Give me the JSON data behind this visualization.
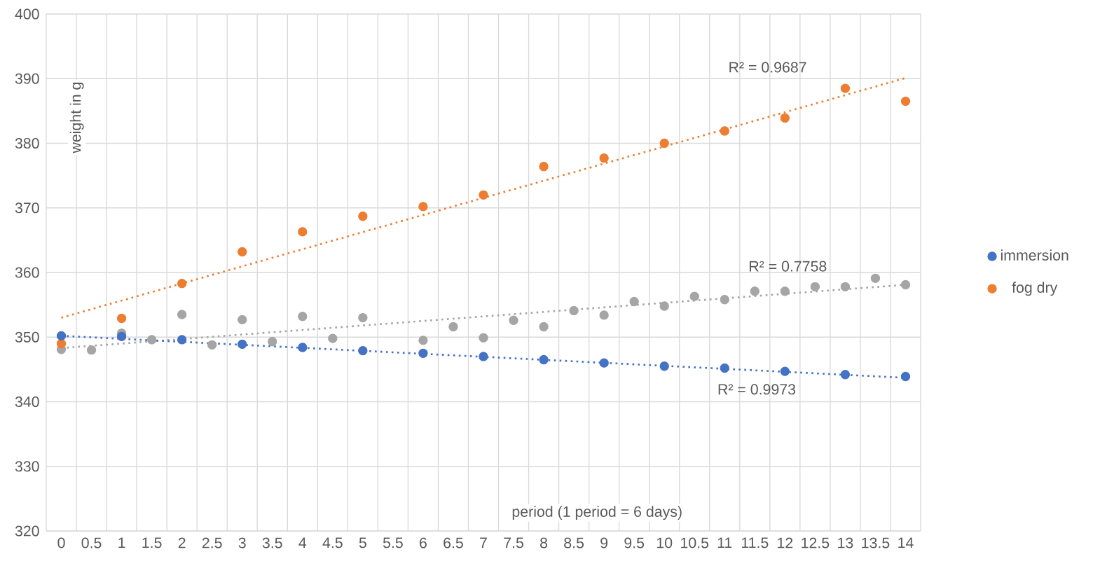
{
  "chart_data": {
    "type": "scatter",
    "xlabel": "period (1 period = 6 days)",
    "ylabel": "weight in g",
    "xlim": [
      -0.25,
      14.25
    ],
    "ylim": [
      320,
      400
    ],
    "xticks": [
      0,
      0.5,
      1,
      1.5,
      2,
      2.5,
      3,
      3.5,
      4,
      4.5,
      5,
      5.5,
      6,
      6.5,
      7,
      7.5,
      8,
      8.5,
      9,
      9.5,
      10,
      10.5,
      11,
      11.5,
      12,
      12.5,
      13,
      13.5,
      14
    ],
    "yticks": [
      320,
      330,
      340,
      350,
      360,
      370,
      380,
      390,
      400
    ],
    "grid": true,
    "legend": "right",
    "marker": "circle",
    "series": [
      {
        "name": "immersion",
        "color": "#4472c4",
        "x": [
          0,
          1,
          2,
          3,
          4,
          5,
          6,
          7,
          8,
          9,
          10,
          11,
          12,
          13,
          14
        ],
        "values": [
          350.2,
          350.1,
          349.6,
          348.9,
          348.4,
          347.9,
          347.5,
          347.0,
          346.5,
          346.0,
          345.5,
          345.2,
          344.7,
          344.2,
          343.9
        ]
      },
      {
        "name": "fog dry",
        "color": "#ed7d31",
        "x": [
          0,
          1,
          2,
          3,
          4,
          5,
          6,
          7,
          8,
          9,
          10,
          11,
          12,
          13,
          14
        ],
        "values": [
          349.0,
          352.9,
          358.3,
          363.2,
          366.3,
          368.7,
          370.2,
          372.0,
          376.4,
          377.7,
          380.0,
          381.9,
          383.9,
          388.5,
          386.5
        ]
      },
      {
        "color": "#a5a5a5",
        "x": [
          0,
          0.5,
          1,
          1.5,
          2,
          2.5,
          3,
          3.5,
          4,
          4.5,
          5,
          5.5,
          6,
          6.5,
          7,
          7.5,
          8,
          8.5,
          9,
          9.5,
          10,
          10.5,
          11,
          11.5,
          12,
          12.5,
          13,
          13.5,
          14
        ],
        "values": [
          348.1,
          348.0,
          350.6,
          349.6,
          353.5,
          348.8,
          352.7,
          349.3,
          353.2,
          349.8,
          353.0,
          null,
          349.5,
          351.6,
          349.9,
          352.6,
          351.6,
          354.1,
          353.4,
          355.5,
          354.8,
          356.3,
          355.8,
          357.1,
          357.1,
          357.8,
          357.8,
          359.1,
          358.1
        ]
      },
      {
        "type": "line",
        "color": "#4472c4",
        "line_style": "dotted",
        "marker": "none",
        "x": [
          0,
          14
        ],
        "values": [
          350.2,
          343.7
        ]
      },
      {
        "type": "line",
        "color": "#ed7d31",
        "line_style": "dotted",
        "marker": "none",
        "x": [
          0,
          14
        ],
        "values": [
          353.0,
          390.1
        ]
      },
      {
        "type": "line",
        "color": "#a5a5a5",
        "line_style": "dotted",
        "marker": "none",
        "x": [
          0,
          14
        ],
        "values": [
          348.3,
          358.1
        ]
      }
    ],
    "annotations": [
      "R² = 0.9687",
      "R² = 0.7758",
      "R² = 0.9973"
    ]
  }
}
